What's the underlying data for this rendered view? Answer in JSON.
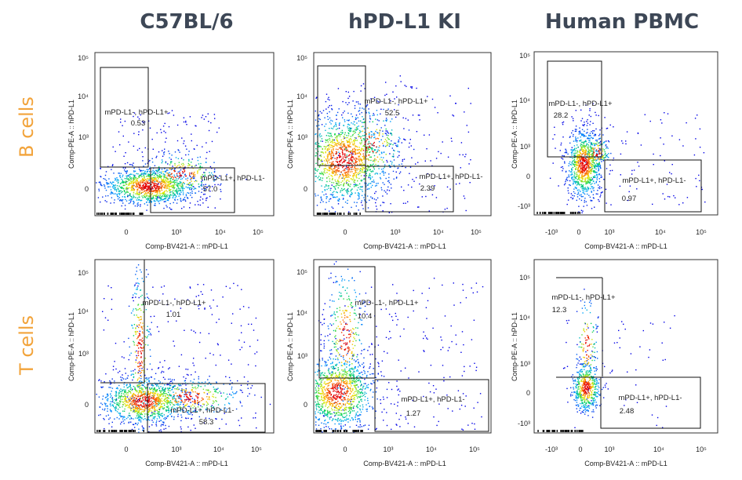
{
  "chart_data": {
    "type": "scatter",
    "column_titles": [
      "C57BL/6",
      "hPD-L1 KI",
      "Human PBMC"
    ],
    "row_titles": [
      "B cells",
      "T cells"
    ],
    "xlabel": "Comp-BV421-A :: mPD-L1",
    "ylabel": "Comp-PE-A :: hPD-L1",
    "panels": [
      {
        "row": "B cells",
        "column": "C57BL/6",
        "xticks": [
          "0",
          "10³",
          "10⁴",
          "10⁵"
        ],
        "yticks": [
          "0",
          "10³",
          "10⁴",
          "10⁵"
        ],
        "gates": [
          {
            "name": "mPD-L1-, hPD-L1+",
            "value": "0.53"
          },
          {
            "name": "mPD-L1+, hPD-L1-",
            "value": "57.0"
          }
        ]
      },
      {
        "row": "B cells",
        "column": "hPD-L1 KI",
        "xticks": [
          "0",
          "10³",
          "10⁴",
          "10⁵"
        ],
        "yticks": [
          "0",
          "10³",
          "10⁴",
          "10⁵"
        ],
        "gates": [
          {
            "name": "mPD-L1-, hPD-L1+",
            "value": "52.5"
          },
          {
            "name": "mPD-L1+, hPD-L1-",
            "value": "2.39"
          }
        ]
      },
      {
        "row": "B cells",
        "column": "Human PBMC",
        "xticks": [
          "-10³",
          "0",
          "10³",
          "10⁴",
          "10⁵"
        ],
        "yticks": [
          "-10³",
          "0",
          "10³",
          "10⁴",
          "10⁵"
        ],
        "gates": [
          {
            "name": "mPD-L1-, hPD-L1+",
            "value": "28.2"
          },
          {
            "name": "mPD-L1+, hPD-L1-",
            "value": "0.97"
          }
        ]
      },
      {
        "row": "T cells",
        "column": "C57BL/6",
        "xticks": [
          "0",
          "10³",
          "10⁴",
          "10⁵"
        ],
        "yticks": [
          "0",
          "10³",
          "10⁴",
          "10⁵"
        ],
        "gates": [
          {
            "name": "mPD-L1-, hPD-L1+",
            "value": "1.01"
          },
          {
            "name": "mPD-L1+, hPD-L1-",
            "value": "58.3"
          }
        ]
      },
      {
        "row": "T cells",
        "column": "hPD-L1 KI",
        "xticks": [
          "0",
          "10³",
          "10⁴",
          "10⁵"
        ],
        "yticks": [
          "0",
          "10³",
          "10⁴",
          "10⁵"
        ],
        "gates": [
          {
            "name": "mPD-L1-, hPD-L1+",
            "value": "10.4"
          },
          {
            "name": "mPD-L1+, hPD-L1-",
            "value": "1.27"
          }
        ]
      },
      {
        "row": "T cells",
        "column": "Human PBMC",
        "xticks": [
          "-10³",
          "0",
          "10³",
          "10⁴",
          "10⁵"
        ],
        "yticks": [
          "-10³",
          "0",
          "10³",
          "10⁴",
          "10⁵"
        ],
        "gates": [
          {
            "name": "mPD-L1-, hPD-L1+",
            "value": "12.3"
          },
          {
            "name": "mPD-L1+, hPD-L1-",
            "value": "2.48"
          }
        ]
      }
    ]
  }
}
